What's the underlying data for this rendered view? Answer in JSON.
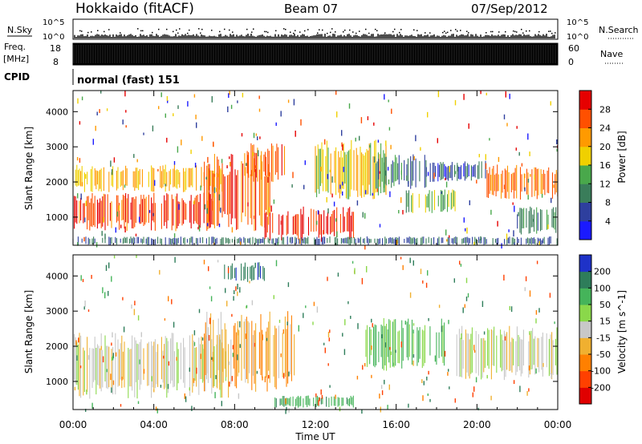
{
  "header": {
    "station": "Hokkaido (fitACF)",
    "beam": "Beam 07",
    "date": "07/Sep/2012"
  },
  "labels": {
    "nsky": "N.Sky",
    "freq": "Freq.",
    "freq_unit": "[MHz]",
    "cpid": "CPID",
    "nsearch": "N.Search",
    "nave": "Nave",
    "cpid_text": "normal (fast) 151",
    "nsky_ticks": [
      "10^5",
      "10^0"
    ],
    "nsearch_ticks": [
      "10^5",
      "10^0"
    ],
    "freq_ticks": [
      "18",
      "8"
    ],
    "nave_ticks": [
      "60",
      "0"
    ]
  },
  "colors": {
    "power_scale": [
      "#1a1aff",
      "#2e3f9e",
      "#3a7d5a",
      "#49a84b",
      "#f0d000",
      "#ff9a00",
      "#ff5000",
      "#e60000"
    ],
    "velocity_scale": [
      "#1e32c8",
      "#2e7d5a",
      "#45b45a",
      "#8ad84a",
      "#c8c8c8",
      "#f0b030",
      "#ff8000",
      "#ff4000",
      "#e00000"
    ]
  },
  "chart_data": [
    {
      "type": "heatmap",
      "name": "Power",
      "xlabel": "",
      "ylabel": "Slant Range [km]",
      "x_ticks": [
        "00:00",
        "04:00",
        "08:00",
        "12:00",
        "16:00",
        "20:00",
        "00:00"
      ],
      "y_ticks": [
        1000,
        2000,
        3000,
        4000
      ],
      "ylim": [
        200,
        4600
      ],
      "xlim_hours": [
        0,
        24
      ],
      "colorbar": {
        "label": "Power [dB]",
        "ticks": [
          4,
          8,
          12,
          16,
          20,
          24,
          28
        ],
        "range": [
          0,
          32
        ]
      },
      "regions": [
        {
          "t0": 0.0,
          "t1": 7.0,
          "r0": 600,
          "r1": 1700,
          "level": 27
        },
        {
          "t0": 0.0,
          "t1": 7.5,
          "r0": 1700,
          "r1": 2500,
          "level": 20
        },
        {
          "t0": 6.5,
          "t1": 9.8,
          "r0": 600,
          "r1": 2800,
          "level": 26
        },
        {
          "t0": 8.5,
          "t1": 10.5,
          "r0": 2000,
          "r1": 3100,
          "level": 25
        },
        {
          "t0": 9.5,
          "t1": 14.0,
          "r0": 300,
          "r1": 1300,
          "level": 29
        },
        {
          "t0": 12.0,
          "t1": 15.5,
          "r0": 1500,
          "r1": 3200,
          "level": 18
        },
        {
          "t0": 15.0,
          "t1": 17.5,
          "r0": 1800,
          "r1": 2800,
          "level": 10
        },
        {
          "t0": 16.5,
          "t1": 19.0,
          "r0": 1100,
          "r1": 1800,
          "level": 14
        },
        {
          "t0": 17.5,
          "t1": 20.5,
          "r0": 2000,
          "r1": 2600,
          "level": 6
        },
        {
          "t0": 20.5,
          "t1": 24.0,
          "r0": 1500,
          "r1": 2500,
          "level": 24
        },
        {
          "t0": 22.0,
          "t1": 24.0,
          "r0": 500,
          "r1": 1300,
          "level": 10
        },
        {
          "t0": 0.0,
          "t1": 24.0,
          "r0": 200,
          "r1": 450,
          "level": 8
        }
      ]
    },
    {
      "type": "heatmap",
      "name": "Velocity",
      "xlabel": "Time UT",
      "ylabel": "Slant Range [km]",
      "x_ticks": [
        "00:00",
        "04:00",
        "08:00",
        "12:00",
        "16:00",
        "20:00",
        "00:00"
      ],
      "y_ticks": [
        1000,
        2000,
        3000,
        4000
      ],
      "ylim": [
        200,
        4600
      ],
      "xlim_hours": [
        0,
        24
      ],
      "colorbar": {
        "label": "Velocity [m s^-1]",
        "ticks": [
          200,
          100,
          50,
          15,
          -15,
          -50,
          -100,
          -200
        ]
      },
      "regions": [
        {
          "t0": 0.0,
          "t1": 8.0,
          "r0": 500,
          "r1": 2400,
          "level": 0
        },
        {
          "t0": 6.5,
          "t1": 11.0,
          "r0": 700,
          "r1": 3000,
          "level": -35
        },
        {
          "t0": 10.0,
          "t1": 14.0,
          "r0": 250,
          "r1": 600,
          "level": 80
        },
        {
          "t0": 14.5,
          "t1": 18.5,
          "r0": 1300,
          "r1": 2800,
          "level": 60
        },
        {
          "t0": 19.0,
          "t1": 24.0,
          "r0": 1000,
          "r1": 2600,
          "level": 5
        },
        {
          "t0": 7.5,
          "t1": 9.5,
          "r0": 3800,
          "r1": 4400,
          "level": 180
        }
      ]
    }
  ]
}
